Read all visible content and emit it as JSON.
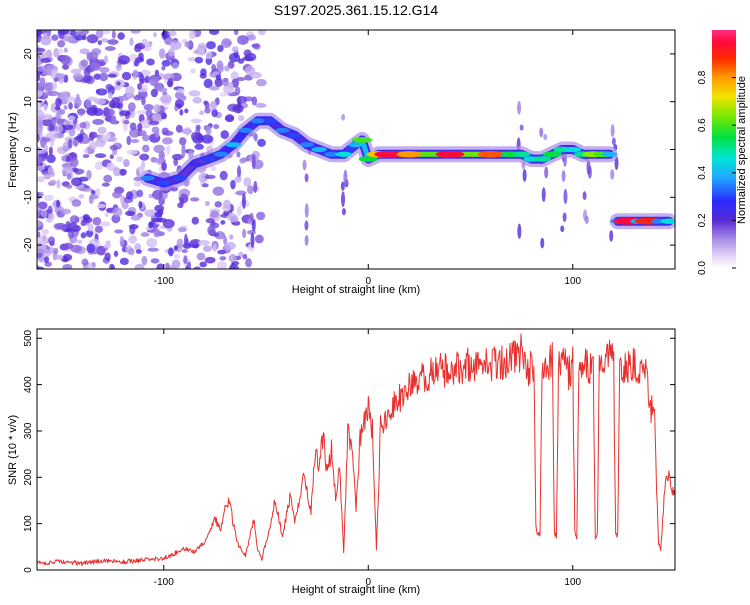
{
  "title": "S197.2025.361.15.12.G14",
  "chart_data": [
    {
      "type": "heatmap",
      "xlabel": "Height of straight line (km)",
      "ylabel": "Frequency (Hz)",
      "xlim": [
        -162,
        150
      ],
      "ylim": [
        -25,
        25
      ],
      "xticks": [
        -100,
        0,
        100
      ],
      "xtick_labels": [
        "-100",
        "0",
        "100"
      ],
      "yticks": [
        -20,
        -10,
        0,
        10,
        20
      ],
      "ytick_labels": [
        "-20",
        "-10",
        "0",
        "10",
        "20"
      ],
      "colorbar": {
        "label": "Normalized spectral amplitude",
        "range": [
          0,
          1
        ],
        "ticks": [
          0.0,
          0.2,
          0.4,
          0.6,
          0.8
        ],
        "tick_labels": [
          "0.0",
          "0.2",
          "0.4",
          "0.6",
          "0.8"
        ]
      },
      "ridge": {
        "x": [
          -108,
          -100,
          -92,
          -85,
          -78,
          -72,
          -66,
          -60,
          -54,
          -48,
          -42,
          -36,
          -30,
          -24,
          -18,
          -12,
          -6,
          -3,
          0,
          5,
          10,
          20,
          40,
          60,
          70,
          75,
          80,
          85,
          90,
          95,
          100,
          105,
          110,
          115,
          118
        ],
        "y": [
          -6,
          -7,
          -6,
          -3,
          -2,
          -1,
          1,
          4,
          6,
          6,
          4,
          3,
          1,
          0,
          -1,
          -1,
          1,
          2,
          -2,
          -1,
          -1,
          -1,
          -1,
          -1,
          -1,
          -1,
          -2,
          -2,
          -1,
          0,
          0,
          -1,
          -1,
          -1,
          -1
        ],
        "amplitude": [
          0.35,
          0.3,
          0.3,
          0.25,
          0.3,
          0.35,
          0.4,
          0.35,
          0.35,
          0.3,
          0.35,
          0.3,
          0.35,
          0.4,
          0.35,
          0.45,
          0.4,
          0.6,
          0.55,
          0.75,
          0.95,
          0.8,
          0.95,
          0.85,
          0.55,
          0.5,
          0.45,
          0.5,
          0.55,
          0.5,
          0.45,
          0.5,
          0.65,
          0.6,
          0.4
        ]
      },
      "second_segment": {
        "x": [
          122,
          127,
          132,
          137,
          142,
          147
        ],
        "y": [
          -15,
          -15,
          -15,
          -15,
          -15,
          -15
        ],
        "amplitude": [
          0.35,
          0.95,
          0.4,
          0.9,
          0.35,
          0.45
        ]
      }
    },
    {
      "type": "line",
      "xlabel": "Height of straight line (km)",
      "ylabel": "SNR (10 * v/v)",
      "xlim": [
        -162,
        150
      ],
      "ylim": [
        0,
        520
      ],
      "xticks": [
        -100,
        0,
        100
      ],
      "xtick_labels": [
        "-100",
        "0",
        "100"
      ],
      "yticks": [
        0,
        100,
        200,
        300,
        400,
        500
      ],
      "ytick_labels": [
        "0",
        "100",
        "200",
        "300",
        "400",
        "500"
      ],
      "color": "#e8312f",
      "x": [
        -162,
        -150,
        -140,
        -130,
        -120,
        -110,
        -100,
        -95,
        -90,
        -85,
        -80,
        -75,
        -72,
        -70,
        -68,
        -66,
        -64,
        -62,
        -60,
        -58,
        -56,
        -54,
        -52,
        -50,
        -48,
        -46,
        -44,
        -42,
        -40,
        -38,
        -36,
        -34,
        -32,
        -30,
        -28,
        -26,
        -24,
        -22,
        -20,
        -18,
        -16,
        -14,
        -12,
        -10,
        -8,
        -6,
        -4,
        -2,
        0,
        2,
        4,
        6,
        8,
        10,
        15,
        20,
        25,
        30,
        35,
        40,
        45,
        50,
        55,
        60,
        65,
        70,
        75,
        78,
        80,
        81,
        82,
        83,
        84,
        85,
        86,
        88,
        90,
        91,
        92,
        93,
        94,
        96,
        98,
        100,
        101,
        102,
        103,
        104,
        106,
        108,
        110,
        111,
        112,
        113,
        114,
        116,
        118,
        120,
        121,
        122,
        123,
        124,
        126,
        128,
        130,
        132,
        134,
        136,
        138,
        139,
        140,
        141,
        142,
        143,
        145,
        147,
        150
      ],
      "y": [
        15,
        18,
        14,
        20,
        17,
        22,
        25,
        35,
        45,
        40,
        60,
        110,
        90,
        130,
        150,
        100,
        60,
        40,
        30,
        70,
        110,
        40,
        25,
        60,
        90,
        140,
        120,
        70,
        120,
        160,
        100,
        140,
        200,
        170,
        130,
        250,
        230,
        290,
        200,
        260,
        160,
        220,
        40,
        300,
        270,
        130,
        280,
        320,
        360,
        300,
        40,
        310,
        330,
        340,
        370,
        390,
        410,
        420,
        430,
        435,
        440,
        445,
        440,
        445,
        450,
        460,
        470,
        430,
        440,
        420,
        90,
        75,
        80,
        450,
        445,
        440,
        455,
        80,
        75,
        445,
        440,
        450,
        420,
        445,
        80,
        70,
        440,
        450,
        440,
        430,
        450,
        70,
        80,
        445,
        450,
        440,
        455,
        445,
        80,
        75,
        430,
        440,
        440,
        445,
        450,
        440,
        445,
        420,
        340,
        360,
        350,
        180,
        60,
        40,
        180,
        200,
        160
      ]
    }
  ]
}
